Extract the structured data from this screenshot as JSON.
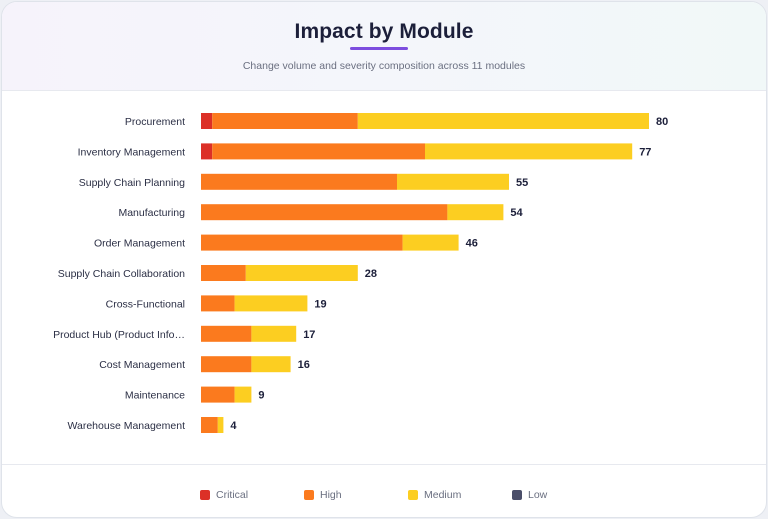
{
  "header": {
    "title": "Impact by Module",
    "subtitle": "Change volume and severity composition across 11 modules"
  },
  "colors": {
    "critical": "#dc3027",
    "high": "#fb7a1e",
    "medium": "#fcce21",
    "low": "#4a4e69",
    "accent": "#7c4dde"
  },
  "legend": [
    {
      "key": "critical",
      "label": "Critical",
      "color": "#dc3027"
    },
    {
      "key": "high",
      "label": "High",
      "color": "#fb7a1e"
    },
    {
      "key": "medium",
      "label": "Medium",
      "color": "#fcce21"
    },
    {
      "key": "low",
      "label": "Low",
      "color": "#4a4e69"
    }
  ],
  "chart_data": {
    "type": "bar",
    "orientation": "horizontal",
    "stacked": true,
    "categories": [
      "Procurement",
      "Inventory Management",
      "Supply Chain Planning",
      "Manufacturing",
      "Order Management",
      "Supply Chain Collaboration",
      "Cross-Functional",
      "Product Hub (Product Info…",
      "Cost Management",
      "Maintenance",
      "Warehouse Management"
    ],
    "series": [
      {
        "name": "Critical",
        "values": [
          2,
          2,
          0,
          0,
          0,
          0,
          0,
          0,
          0,
          0,
          0
        ]
      },
      {
        "name": "High",
        "values": [
          26,
          38,
          35,
          44,
          36,
          8,
          6,
          9,
          9,
          6,
          3
        ]
      },
      {
        "name": "Medium",
        "values": [
          52,
          37,
          20,
          10,
          10,
          20,
          13,
          8,
          7,
          3,
          1
        ]
      },
      {
        "name": "Low",
        "values": [
          0,
          0,
          0,
          0,
          0,
          0,
          0,
          0,
          0,
          0,
          0
        ]
      }
    ],
    "totals": [
      80,
      77,
      55,
      54,
      46,
      28,
      19,
      17,
      16,
      9,
      4
    ],
    "xlim": [
      0,
      80
    ],
    "grid": false,
    "legend_position": "bottom"
  }
}
